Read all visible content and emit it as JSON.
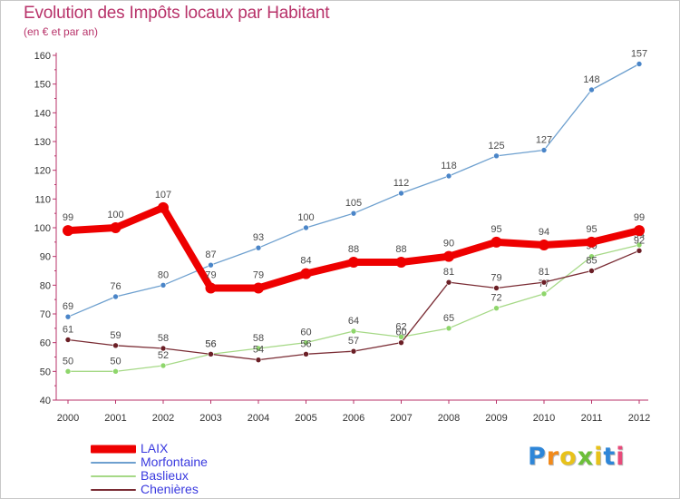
{
  "title": "Evolution des Impôts locaux par Habitant",
  "subtitle": "(en € et par an)",
  "logo_text": "Proxiti",
  "colors": {
    "title": "#b8336a",
    "axis": "#b8336a",
    "legend_text": "#3a3adf"
  },
  "chart_data": {
    "type": "line",
    "title": "Evolution des Impôts locaux par Habitant",
    "subtitle": "(en € et par an)",
    "xlabel": "",
    "ylabel": "",
    "ylim": [
      40,
      160
    ],
    "yticks": [
      40,
      50,
      60,
      70,
      80,
      90,
      100,
      110,
      120,
      130,
      140,
      150,
      160
    ],
    "grid": false,
    "legend_position": "bottom-left",
    "categories": [
      "2000",
      "2001",
      "2002",
      "2003",
      "2004",
      "2005",
      "2006",
      "2007",
      "2008",
      "2009",
      "2010",
      "2011",
      "2012"
    ],
    "series": [
      {
        "name": "Morfontaine",
        "color": "#6ea0cf",
        "marker": "#4a85c8",
        "style": "thin",
        "values": [
          69,
          76,
          80,
          87,
          93,
          100,
          105,
          112,
          118,
          125,
          127,
          148,
          157
        ]
      },
      {
        "name": "Baslieux",
        "color": "#a6d987",
        "marker": "#8ed66b",
        "style": "thin",
        "values": [
          50,
          50,
          52,
          56,
          58,
          60,
          64,
          62,
          65,
          72,
          77,
          90,
          94
        ]
      },
      {
        "name": "Chenières",
        "color": "#7a2c34",
        "marker": "#6b1f26",
        "style": "thin",
        "values": [
          61,
          59,
          58,
          56,
          54,
          56,
          57,
          60,
          81,
          79,
          81,
          85,
          92
        ]
      },
      {
        "name": "LAIX",
        "color": "#ee0000",
        "marker": "#ee0000",
        "style": "thick",
        "values": [
          99,
          100,
          107,
          79,
          79,
          84,
          88,
          88,
          90,
          95,
          94,
          95,
          99
        ]
      }
    ],
    "legend_order": [
      "LAIX",
      "Morfontaine",
      "Baslieux",
      "Chenières"
    ]
  }
}
